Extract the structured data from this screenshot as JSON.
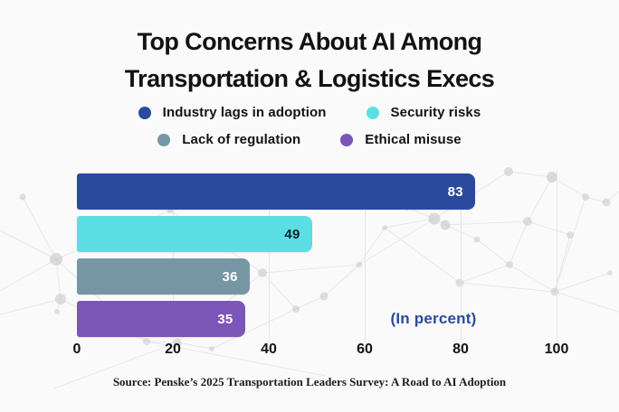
{
  "title": {
    "line1": "Top Concerns About AI Among",
    "line2": "Transportation & Logistics Execs"
  },
  "legend": {
    "rows": [
      [
        {
          "label": "Industry lags in adoption",
          "color": "#2a4a9e",
          "icon": "circle-swatch"
        },
        {
          "label": "Security risks",
          "color": "#5bdfe4",
          "icon": "circle-swatch"
        }
      ],
      [
        {
          "label": "Lack of regulation",
          "color": "#7796a3",
          "icon": "circle-swatch"
        },
        {
          "label": "Ethical misuse",
          "color": "#7c56b7",
          "icon": "circle-swatch"
        }
      ]
    ]
  },
  "chart_data": {
    "type": "bar",
    "orientation": "horizontal",
    "title": "Top Concerns About AI Among Transportation & Logistics Execs",
    "categories": [
      "Industry lags in adoption",
      "Security risks",
      "Lack of regulation",
      "Ethical misuse"
    ],
    "values": [
      83,
      49,
      36,
      35
    ],
    "bar_colors": [
      "#2a4a9e",
      "#5bdfe4",
      "#7796a3",
      "#7c56b7"
    ],
    "value_label_colors": [
      "#ffffff",
      "#14242b",
      "#ffffff",
      "#ffffff"
    ],
    "xlabel": "",
    "ylabel": "",
    "xlim": [
      0,
      100
    ],
    "xticks": [
      0,
      20,
      40,
      60,
      80,
      100
    ],
    "grid": "vertical-light",
    "legend_position": "top-center",
    "unit_note": "(In percent)",
    "unit_note_color": "#2a4a9e"
  },
  "source": "Source: Penske’s 2025 Transportation Leaders Survey: A Road to AI Adoption",
  "colors": {
    "background": "#fafafa",
    "title_text": "#121212",
    "axis_text": "#131313",
    "gridline": "#e6e6e6",
    "pattern_dot": "#c7c7c7",
    "pattern_line": "#e1e1e1"
  }
}
